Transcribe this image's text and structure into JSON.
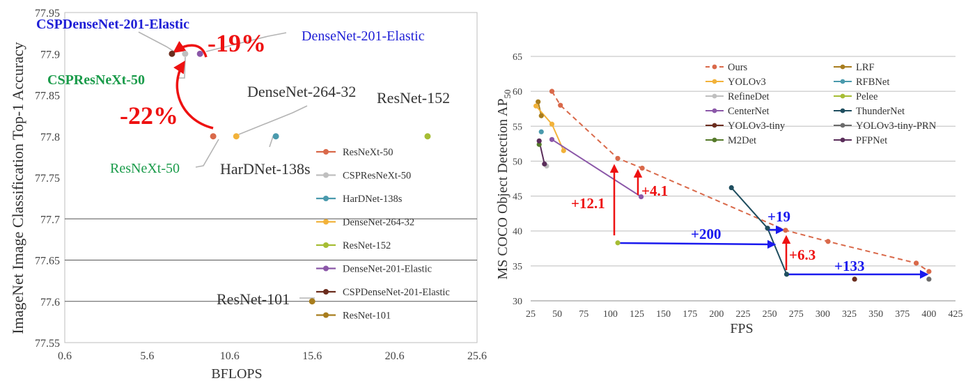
{
  "chart_data": [
    {
      "type": "scatter",
      "xlabel": "BFLOPS",
      "ylabel": "ImageNet Image Classification Top-1 Accuracy",
      "xlim": [
        0.6,
        25.6
      ],
      "ylim": [
        77.55,
        77.95
      ],
      "xticks": [
        "0.6",
        "5.6",
        "10.6",
        "15.6",
        "20.6",
        "25.6"
      ],
      "yticks": [
        "77.55",
        "77.6",
        "77.65",
        "77.7",
        "77.75",
        "77.8",
        "77.85",
        "77.9",
        "77.95"
      ],
      "grid": "horizontal",
      "legend_position": "right",
      "series": [
        {
          "name": "ResNeXt-50",
          "x": 9.6,
          "y": 77.8,
          "color": "#d9694a"
        },
        {
          "name": "CSPResNeXt-50",
          "x": 7.9,
          "y": 77.9,
          "color": "#bfbfbf"
        },
        {
          "name": "HarDNet-138s",
          "x": 13.4,
          "y": 77.8,
          "color": "#4a9aad"
        },
        {
          "name": "DenseNet-264-32",
          "x": 11.0,
          "y": 77.8,
          "color": "#f2b23a"
        },
        {
          "name": "ResNet-152",
          "x": 22.6,
          "y": 77.8,
          "color": "#a6bd34"
        },
        {
          "name": "DenseNet-201-Elastic",
          "x": 8.8,
          "y": 77.9,
          "color": "#8b57a8"
        },
        {
          "name": "CSPDenseNet-201-Elastic",
          "x": 7.1,
          "y": 77.9,
          "color": "#6b2d1e"
        },
        {
          "name": "ResNet-101",
          "x": 15.6,
          "y": 77.6,
          "color": "#a87d1e"
        }
      ],
      "labels": {
        "cspdensenet": "CSPDenseNet-201-Elastic",
        "densenet201": "DenseNet-201-Elastic",
        "cspresnext": "CSPResNeXt-50",
        "densenet264": "DenseNet-264-32",
        "resnet152": "ResNet-152",
        "resnext50": "ResNeXt-50",
        "hardnet": "HarDNet-138s",
        "resnet101": "ResNet-101"
      },
      "annotations": {
        "pct19": "-19%",
        "pct22": "-22%"
      }
    },
    {
      "type": "line",
      "xlabel": "FPS",
      "ylabel": "MS COCO Object Detection AP",
      "ylabel_sub": "50",
      "xlim": [
        25,
        425
      ],
      "ylim": [
        30,
        65
      ],
      "xticks": [
        "25",
        "50",
        "75",
        "100",
        "125",
        "150",
        "175",
        "200",
        "225",
        "250",
        "275",
        "300",
        "325",
        "350",
        "375",
        "400",
        "425"
      ],
      "yticks": [
        "30",
        "35",
        "40",
        "45",
        "50",
        "55",
        "60",
        "65"
      ],
      "grid": "horizontal",
      "legend_position": "top",
      "series": [
        {
          "name": "Ours",
          "color": "#d9694a",
          "dashed": true,
          "points": [
            [
              45,
              60
            ],
            [
              53,
              58
            ],
            [
              107,
              50.4
            ],
            [
              130,
              49
            ],
            [
              265,
              40.1
            ],
            [
              305,
              38.5
            ],
            [
              388,
              35.4
            ],
            [
              400,
              34.2
            ]
          ]
        },
        {
          "name": "LRF",
          "color": "#a87d1e",
          "points": [
            [
              32,
              58.5
            ],
            [
              35,
              56.5
            ]
          ]
        },
        {
          "name": "YOLOv3",
          "color": "#f2b23a",
          "points": [
            [
              30,
              57.9
            ],
            [
              45,
              55.3
            ],
            [
              56,
              51.5
            ]
          ]
        },
        {
          "name": "RFBNet",
          "color": "#4a9aad",
          "points": [
            [
              35,
              54.2
            ]
          ]
        },
        {
          "name": "RefineDet",
          "color": "#bfbfbf",
          "points": [
            [
              40,
              49.3
            ]
          ]
        },
        {
          "name": "Pelee",
          "color": "#a6bd34",
          "points": [
            [
              107,
              38.3
            ]
          ]
        },
        {
          "name": "CenterNet",
          "color": "#8b57a8",
          "points": [
            [
              45,
              53.1
            ],
            [
              129,
              44.9
            ]
          ]
        },
        {
          "name": "ThunderNet",
          "color": "#1f4e5f",
          "points": [
            [
              214,
              46.2
            ],
            [
              248,
              40.4
            ],
            [
              266,
              33.8
            ]
          ]
        },
        {
          "name": "YOLOv3-tiny",
          "color": "#6b2d1e",
          "points": [
            [
              330,
              33.1
            ]
          ]
        },
        {
          "name": "YOLOv3-tiny-PRN",
          "color": "#6b6b6b",
          "points": [
            [
              400,
              33.1
            ]
          ]
        },
        {
          "name": "M2Det",
          "color": "#557a2a",
          "points": [
            [
              33,
              52.4
            ]
          ]
        },
        {
          "name": "PFPNet",
          "color": "#5a2d5a",
          "points": [
            [
              33,
              52.9
            ],
            [
              38,
              49.6
            ]
          ]
        }
      ],
      "annotations": {
        "a121": "+12.1",
        "a41": "+4.1",
        "a200": "+200",
        "a19": "+19",
        "a63": "+6.3",
        "a133": "+133"
      }
    }
  ]
}
